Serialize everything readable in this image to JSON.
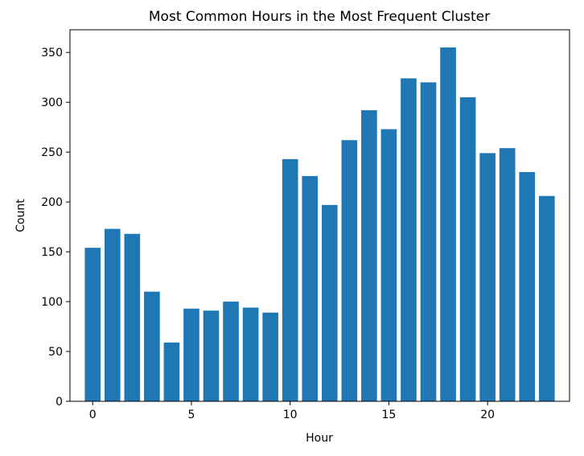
{
  "chart_data": {
    "type": "bar",
    "title": "Most Common Hours in the Most Frequent Cluster",
    "xlabel": "Hour",
    "ylabel": "Count",
    "x": [
      0,
      1,
      2,
      3,
      4,
      5,
      6,
      7,
      8,
      9,
      10,
      11,
      12,
      13,
      14,
      15,
      16,
      17,
      18,
      19,
      20,
      21,
      22,
      23
    ],
    "values": [
      154,
      173,
      168,
      110,
      59,
      93,
      91,
      100,
      94,
      89,
      243,
      226,
      197,
      262,
      292,
      273,
      324,
      320,
      355,
      305,
      249,
      254,
      230,
      206
    ],
    "xlim": [
      -1.15,
      24.15
    ],
    "ylim": [
      0,
      372.75
    ],
    "xticks": [
      0,
      5,
      10,
      15,
      20
    ],
    "yticks": [
      0,
      50,
      100,
      150,
      200,
      250,
      300,
      350
    ],
    "bar_color": "#1f77b4",
    "grid": false,
    "legend": "none"
  }
}
